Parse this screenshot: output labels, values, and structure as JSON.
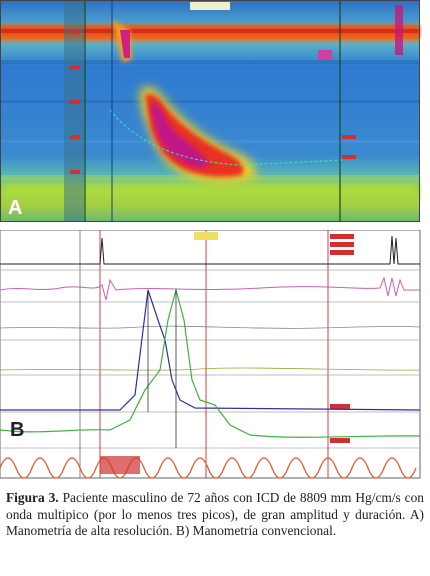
{
  "figure": {
    "panels": [
      {
        "label": "A"
      },
      {
        "label": "B"
      }
    ],
    "caption": {
      "label": "Figura 3.",
      "text": "Paciente masculino de 72 años con ICD de 8809 mm Hg/cm/s con onda multipico (por lo menos tres picos), de gran amplitud y duración. A) Manometría de alta resolución. B) Manometría convencional."
    }
  }
}
